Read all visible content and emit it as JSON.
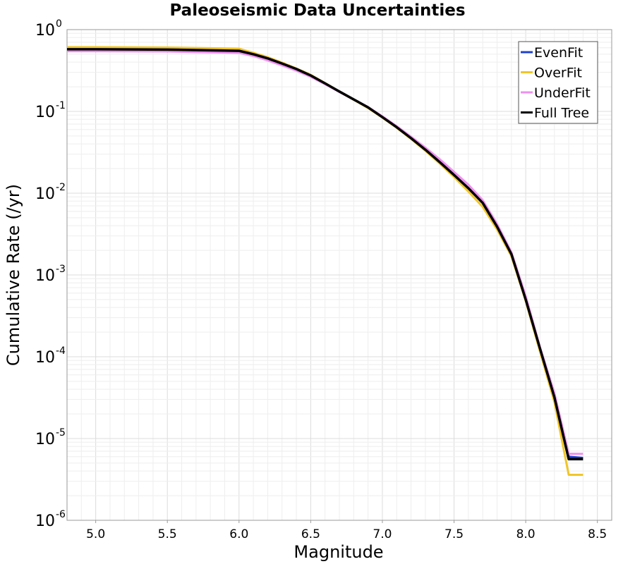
{
  "chart_data": {
    "type": "line",
    "title": "Paleoseismic Data Uncertainties",
    "xlabel": "Magnitude",
    "ylabel": "Cumulative Rate (/yr)",
    "xlim": [
      4.8,
      8.6
    ],
    "ylim": [
      1e-06,
      1
    ],
    "yscale": "log",
    "x_ticks": [
      "5.0",
      "5.5",
      "6.0",
      "6.5",
      "7.0",
      "7.5",
      "8.0",
      "8.5"
    ],
    "y_ticks": [
      {
        "base": "10",
        "exp": "0"
      },
      {
        "base": "10",
        "exp": "-1"
      },
      {
        "base": "10",
        "exp": "-2"
      },
      {
        "base": "10",
        "exp": "-3"
      },
      {
        "base": "10",
        "exp": "-4"
      },
      {
        "base": "10",
        "exp": "-5"
      },
      {
        "base": "10",
        "exp": "-6"
      }
    ],
    "grid": true,
    "legend_position": "top-right",
    "x": [
      4.8,
      5.0,
      5.5,
      6.0,
      6.1,
      6.2,
      6.3,
      6.4,
      6.5,
      6.6,
      6.7,
      6.8,
      6.9,
      7.0,
      7.1,
      7.2,
      7.3,
      7.4,
      7.5,
      7.6,
      7.7,
      7.8,
      7.9,
      8.0,
      8.1,
      8.2,
      8.3,
      8.4
    ],
    "series": [
      {
        "name": "EvenFit",
        "color": "#1f3fcf",
        "values": [
          0.575,
          0.575,
          0.568,
          0.545,
          0.5,
          0.445,
          0.385,
          0.33,
          0.275,
          0.22,
          0.175,
          0.14,
          0.112,
          0.085,
          0.064,
          0.047,
          0.034,
          0.024,
          0.0167,
          0.0115,
          0.0076,
          0.0038,
          0.0018,
          0.0005,
          0.00012,
          3.4e-05,
          6e-06,
          5.8e-06
        ]
      },
      {
        "name": "OverFit",
        "color": "#f0c52a",
        "values": [
          0.61,
          0.61,
          0.605,
          0.585,
          0.52,
          0.46,
          0.395,
          0.335,
          0.28,
          0.222,
          0.175,
          0.139,
          0.11,
          0.084,
          0.063,
          0.046,
          0.033,
          0.023,
          0.0158,
          0.0105,
          0.0068,
          0.0036,
          0.0017,
          0.00048,
          0.000115,
          2.8e-05,
          3.6e-06,
          3.6e-06
        ]
      },
      {
        "name": "UnderFit",
        "color": "#ef8ff0",
        "values": [
          0.545,
          0.545,
          0.54,
          0.52,
          0.475,
          0.42,
          0.365,
          0.315,
          0.265,
          0.215,
          0.173,
          0.14,
          0.113,
          0.087,
          0.066,
          0.049,
          0.036,
          0.026,
          0.0182,
          0.0127,
          0.0082,
          0.0042,
          0.0019,
          0.00055,
          0.00013,
          3.6e-05,
          6.5e-06,
          6.5e-06
        ]
      },
      {
        "name": "Full Tree",
        "color": "#000000",
        "values": [
          0.575,
          0.575,
          0.57,
          0.55,
          0.5,
          0.445,
          0.385,
          0.33,
          0.275,
          0.22,
          0.175,
          0.14,
          0.112,
          0.085,
          0.064,
          0.047,
          0.034,
          0.024,
          0.0167,
          0.0115,
          0.0076,
          0.0039,
          0.0018,
          0.0005,
          0.000125,
          3.2e-05,
          5.6e-06,
          5.6e-06
        ]
      }
    ]
  }
}
